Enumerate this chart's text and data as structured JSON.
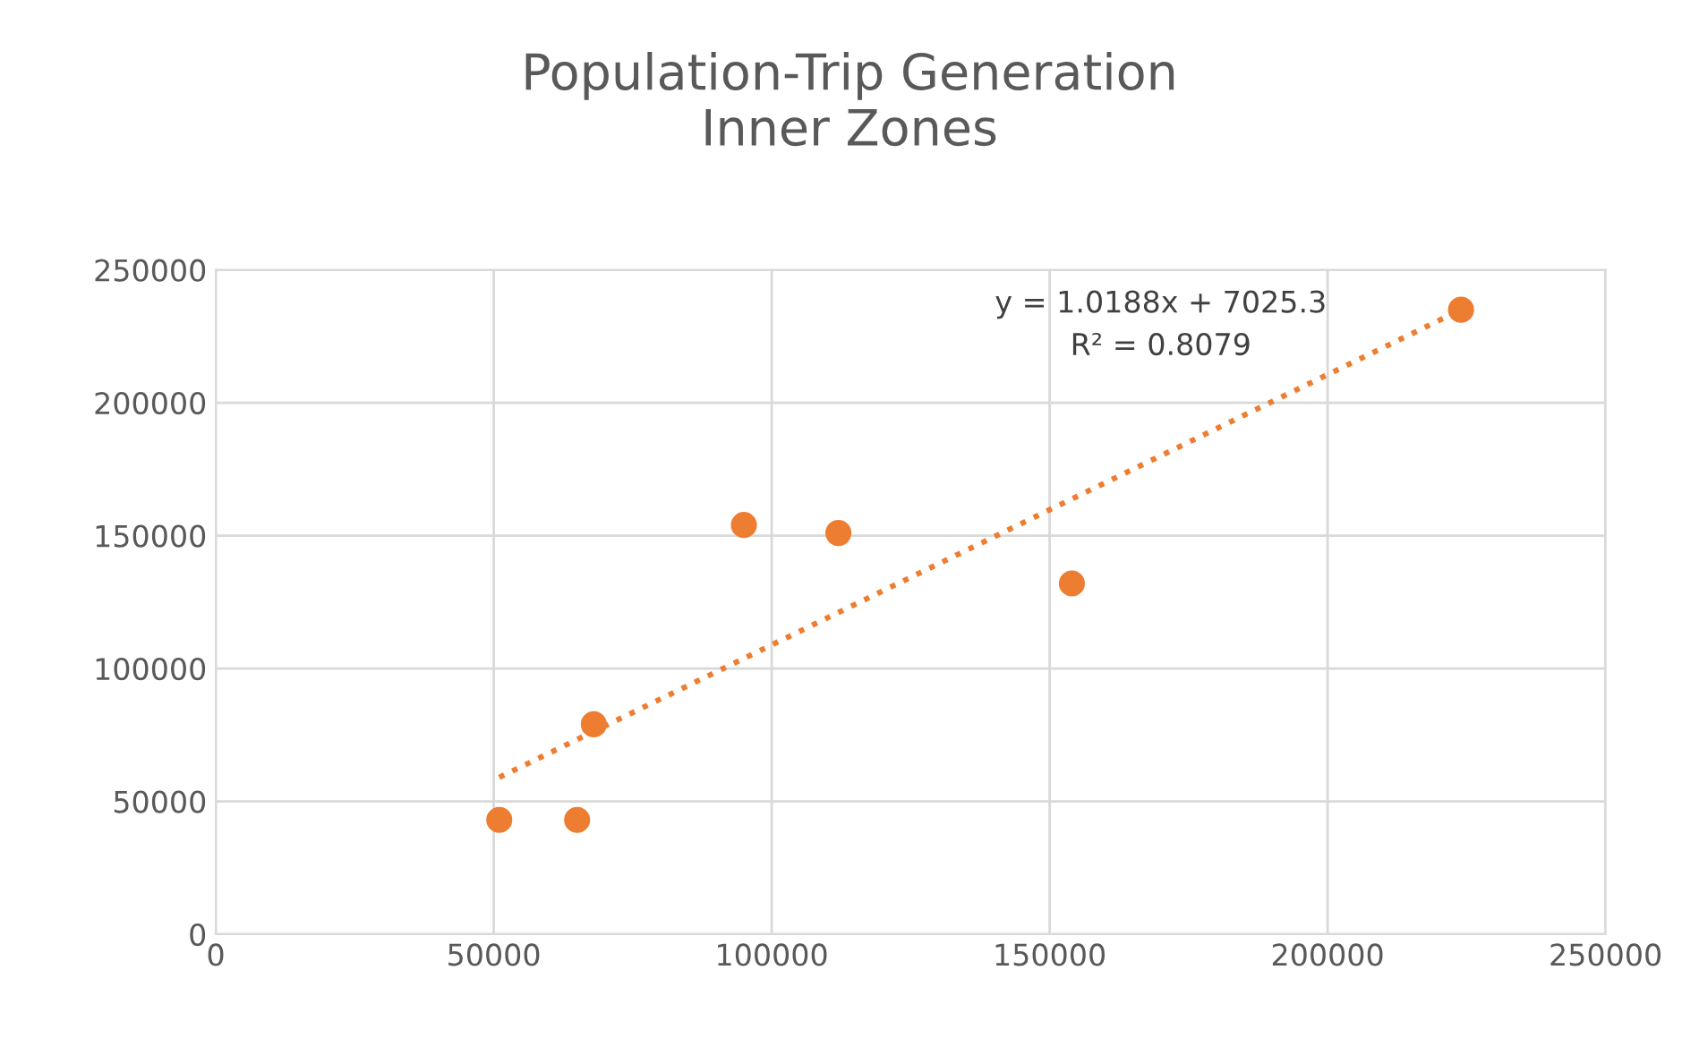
{
  "chart_data": {
    "type": "scatter",
    "title": "Population-Trip Generation\nInner Zones",
    "xlim": [
      0,
      250000
    ],
    "xticks": [
      0,
      50000,
      100000,
      150000,
      200000,
      250000
    ],
    "ylim": [
      0,
      250000
    ],
    "yticks": [
      0,
      50000,
      100000,
      150000,
      200000,
      250000
    ],
    "grid": true,
    "series": [
      {
        "color": "#ed7d31",
        "marker": "circle",
        "x": [
          51000,
          65000,
          68000,
          95000,
          112000,
          154000,
          224000
        ],
        "values": [
          43000,
          43000,
          79000,
          154000,
          151000,
          132000,
          235000
        ]
      },
      {
        "type": "line",
        "color": "#ed7d31",
        "line_style": "dotted",
        "x": [
          51000,
          224000
        ],
        "values": [
          59000,
          235000
        ]
      }
    ],
    "annotations": [
      "y = 1.0188x + 7025.3\nR² = 0.8079"
    ]
  }
}
